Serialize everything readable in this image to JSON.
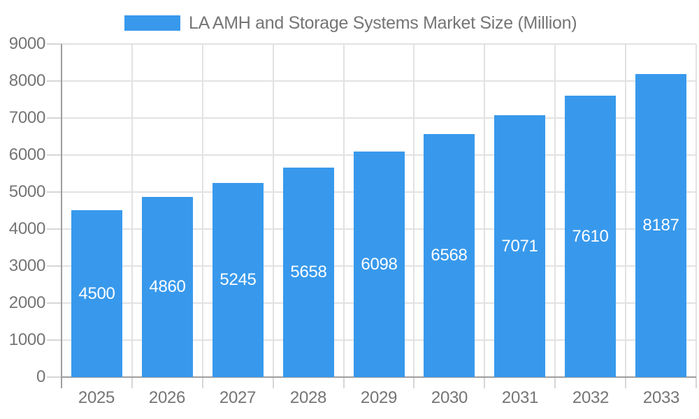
{
  "legend": {
    "label": "LA AMH and Storage Systems Market Size (Million)"
  },
  "colors": {
    "bar": "#3899ec",
    "grid": "#e2e2e2",
    "axis": "#9e9e9e",
    "tick": "#d6d6d6",
    "tick_label": "#757575",
    "value_label": "#ffffff",
    "background": "#ffffff"
  },
  "chart_data": {
    "type": "bar",
    "title": "LA AMH and Storage Systems Market Size (Million)",
    "categories": [
      "2025",
      "2026",
      "2027",
      "2028",
      "2029",
      "2030",
      "2031",
      "2032",
      "2033"
    ],
    "values": [
      4500,
      4860,
      5245,
      5658,
      6098,
      6568,
      7071,
      7610,
      8187
    ],
    "xlabel": "",
    "ylabel": "",
    "ylim": [
      0,
      9000
    ],
    "ytick_interval": 1000,
    "grid": true,
    "legend_position": "top",
    "value_labels": "inside-center"
  }
}
